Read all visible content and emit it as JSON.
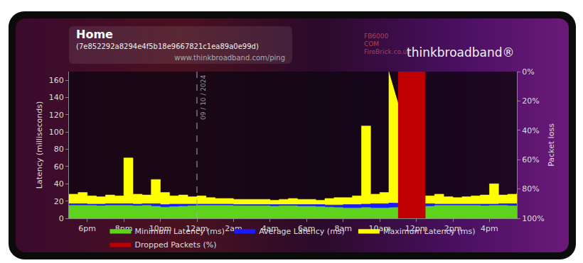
{
  "chart_data": {
    "type": "area",
    "title": "Home",
    "subtitle": "(7e852292a8294e4f5b18e9667821c1ea89a0e99d)",
    "source": "www.thinkbroadband.com/ping",
    "logos": [
      "FB6000",
      "COM",
      "FireBrick.co.uk",
      "thinkbroadband®"
    ],
    "y_label": "Latency (milliseconds)",
    "y2_label": "Packet loss",
    "x": [
      17,
      17.5,
      18,
      18.5,
      19,
      19.5,
      20,
      20.5,
      21,
      21.5,
      22,
      22.5,
      23,
      23.5,
      24,
      24.5,
      25,
      25.5,
      26,
      26.5,
      27,
      27.5,
      28,
      28.5,
      29,
      29.5,
      30,
      30.5,
      31,
      31.5,
      32,
      32.5,
      33,
      33.5,
      34,
      34.5,
      35,
      35.5,
      36,
      36.5,
      37,
      37.5,
      38,
      38.5,
      39,
      39.5,
      40,
      40.5,
      41,
      41.5
    ],
    "series": [
      {
        "name": "Minimum Latency (ms)",
        "color": "#5fd31b",
        "values": [
          15,
          15,
          15,
          14.5,
          15,
          15,
          15,
          14.5,
          15,
          14,
          13,
          13.5,
          14,
          14.5,
          15,
          15,
          15,
          15,
          14.5,
          14.5,
          14.5,
          14.5,
          14,
          14.5,
          14.5,
          14,
          14,
          13.5,
          13,
          12.5,
          12,
          12,
          12.5,
          12,
          12,
          12.5,
          null,
          null,
          null,
          14,
          15,
          15,
          15,
          15,
          15,
          14.5,
          15,
          15,
          14.5,
          14
        ]
      },
      {
        "name": "Average Latency (ms)",
        "color": "#1a1aff",
        "values": [
          17,
          17,
          16.5,
          16.5,
          17,
          17,
          17,
          16.5,
          17,
          17,
          16,
          16.5,
          16.5,
          16.5,
          16.5,
          16.5,
          16.5,
          16.5,
          16,
          16,
          16,
          16,
          16,
          16,
          16,
          16,
          16,
          16,
          15.5,
          15.5,
          16,
          16,
          16.5,
          17,
          17,
          18,
          null,
          null,
          null,
          17,
          16.5,
          16.5,
          16.5,
          16.5,
          16.5,
          16.5,
          16.5,
          17,
          17,
          17
        ]
      },
      {
        "name": "Maximum Latency (ms)",
        "color": "#ffff00",
        "values": [
          28,
          30,
          26,
          25,
          27,
          26,
          70,
          28,
          27,
          45,
          30,
          26,
          27,
          25,
          26,
          24,
          23,
          23,
          22,
          22,
          22,
          22,
          21,
          22,
          23,
          22,
          22,
          21,
          23,
          24,
          24,
          26,
          107,
          28,
          30,
          170,
          null,
          null,
          null,
          26,
          28,
          25,
          24,
          25,
          26,
          27,
          40,
          27,
          28,
          30
        ]
      },
      {
        "name": "Dropped Packets (%)",
        "color": "#c00000",
        "axis": "y2",
        "values": [
          0,
          0,
          0,
          0,
          0,
          0,
          0,
          0,
          0,
          0,
          0,
          0,
          0,
          0,
          0,
          0,
          0,
          0,
          0,
          0,
          0,
          0,
          0,
          0,
          0,
          0,
          0,
          0,
          0,
          0,
          0,
          0,
          0,
          0,
          0,
          0,
          100,
          100,
          100,
          0,
          0,
          0,
          0,
          0,
          0,
          0,
          0,
          0,
          0,
          0
        ]
      }
    ],
    "xlim": [
      17,
      41.5
    ],
    "xticks": [
      {
        "value": 18,
        "label": "6pm"
      },
      {
        "value": 20,
        "label": "8pm"
      },
      {
        "value": 22,
        "label": "10pm"
      },
      {
        "value": 24,
        "label": "12am"
      },
      {
        "value": 26,
        "label": "2am"
      },
      {
        "value": 28,
        "label": "4am"
      },
      {
        "value": 30,
        "label": "6am"
      },
      {
        "value": 32,
        "label": "8am"
      },
      {
        "value": 34,
        "label": "10am"
      },
      {
        "value": 36,
        "label": "12pm"
      },
      {
        "value": 38,
        "label": "2pm"
      },
      {
        "value": 40,
        "label": "4pm"
      }
    ],
    "ylim": [
      0,
      170
    ],
    "yticks": [
      0,
      20,
      40,
      60,
      80,
      100,
      120,
      140,
      160
    ],
    "y2lim": [
      100,
      0
    ],
    "y2ticks": [
      {
        "value": 0,
        "label": "0%"
      },
      {
        "value": 20,
        "label": "20%"
      },
      {
        "value": 40,
        "label": "40%"
      },
      {
        "value": 60,
        "label": "60%"
      },
      {
        "value": 80,
        "label": "80%"
      },
      {
        "value": 100,
        "label": "100%"
      }
    ],
    "annotations": [
      {
        "text": "09 / 10 / 2024",
        "x": 24
      }
    ],
    "grid": false,
    "legend": "bottom"
  }
}
